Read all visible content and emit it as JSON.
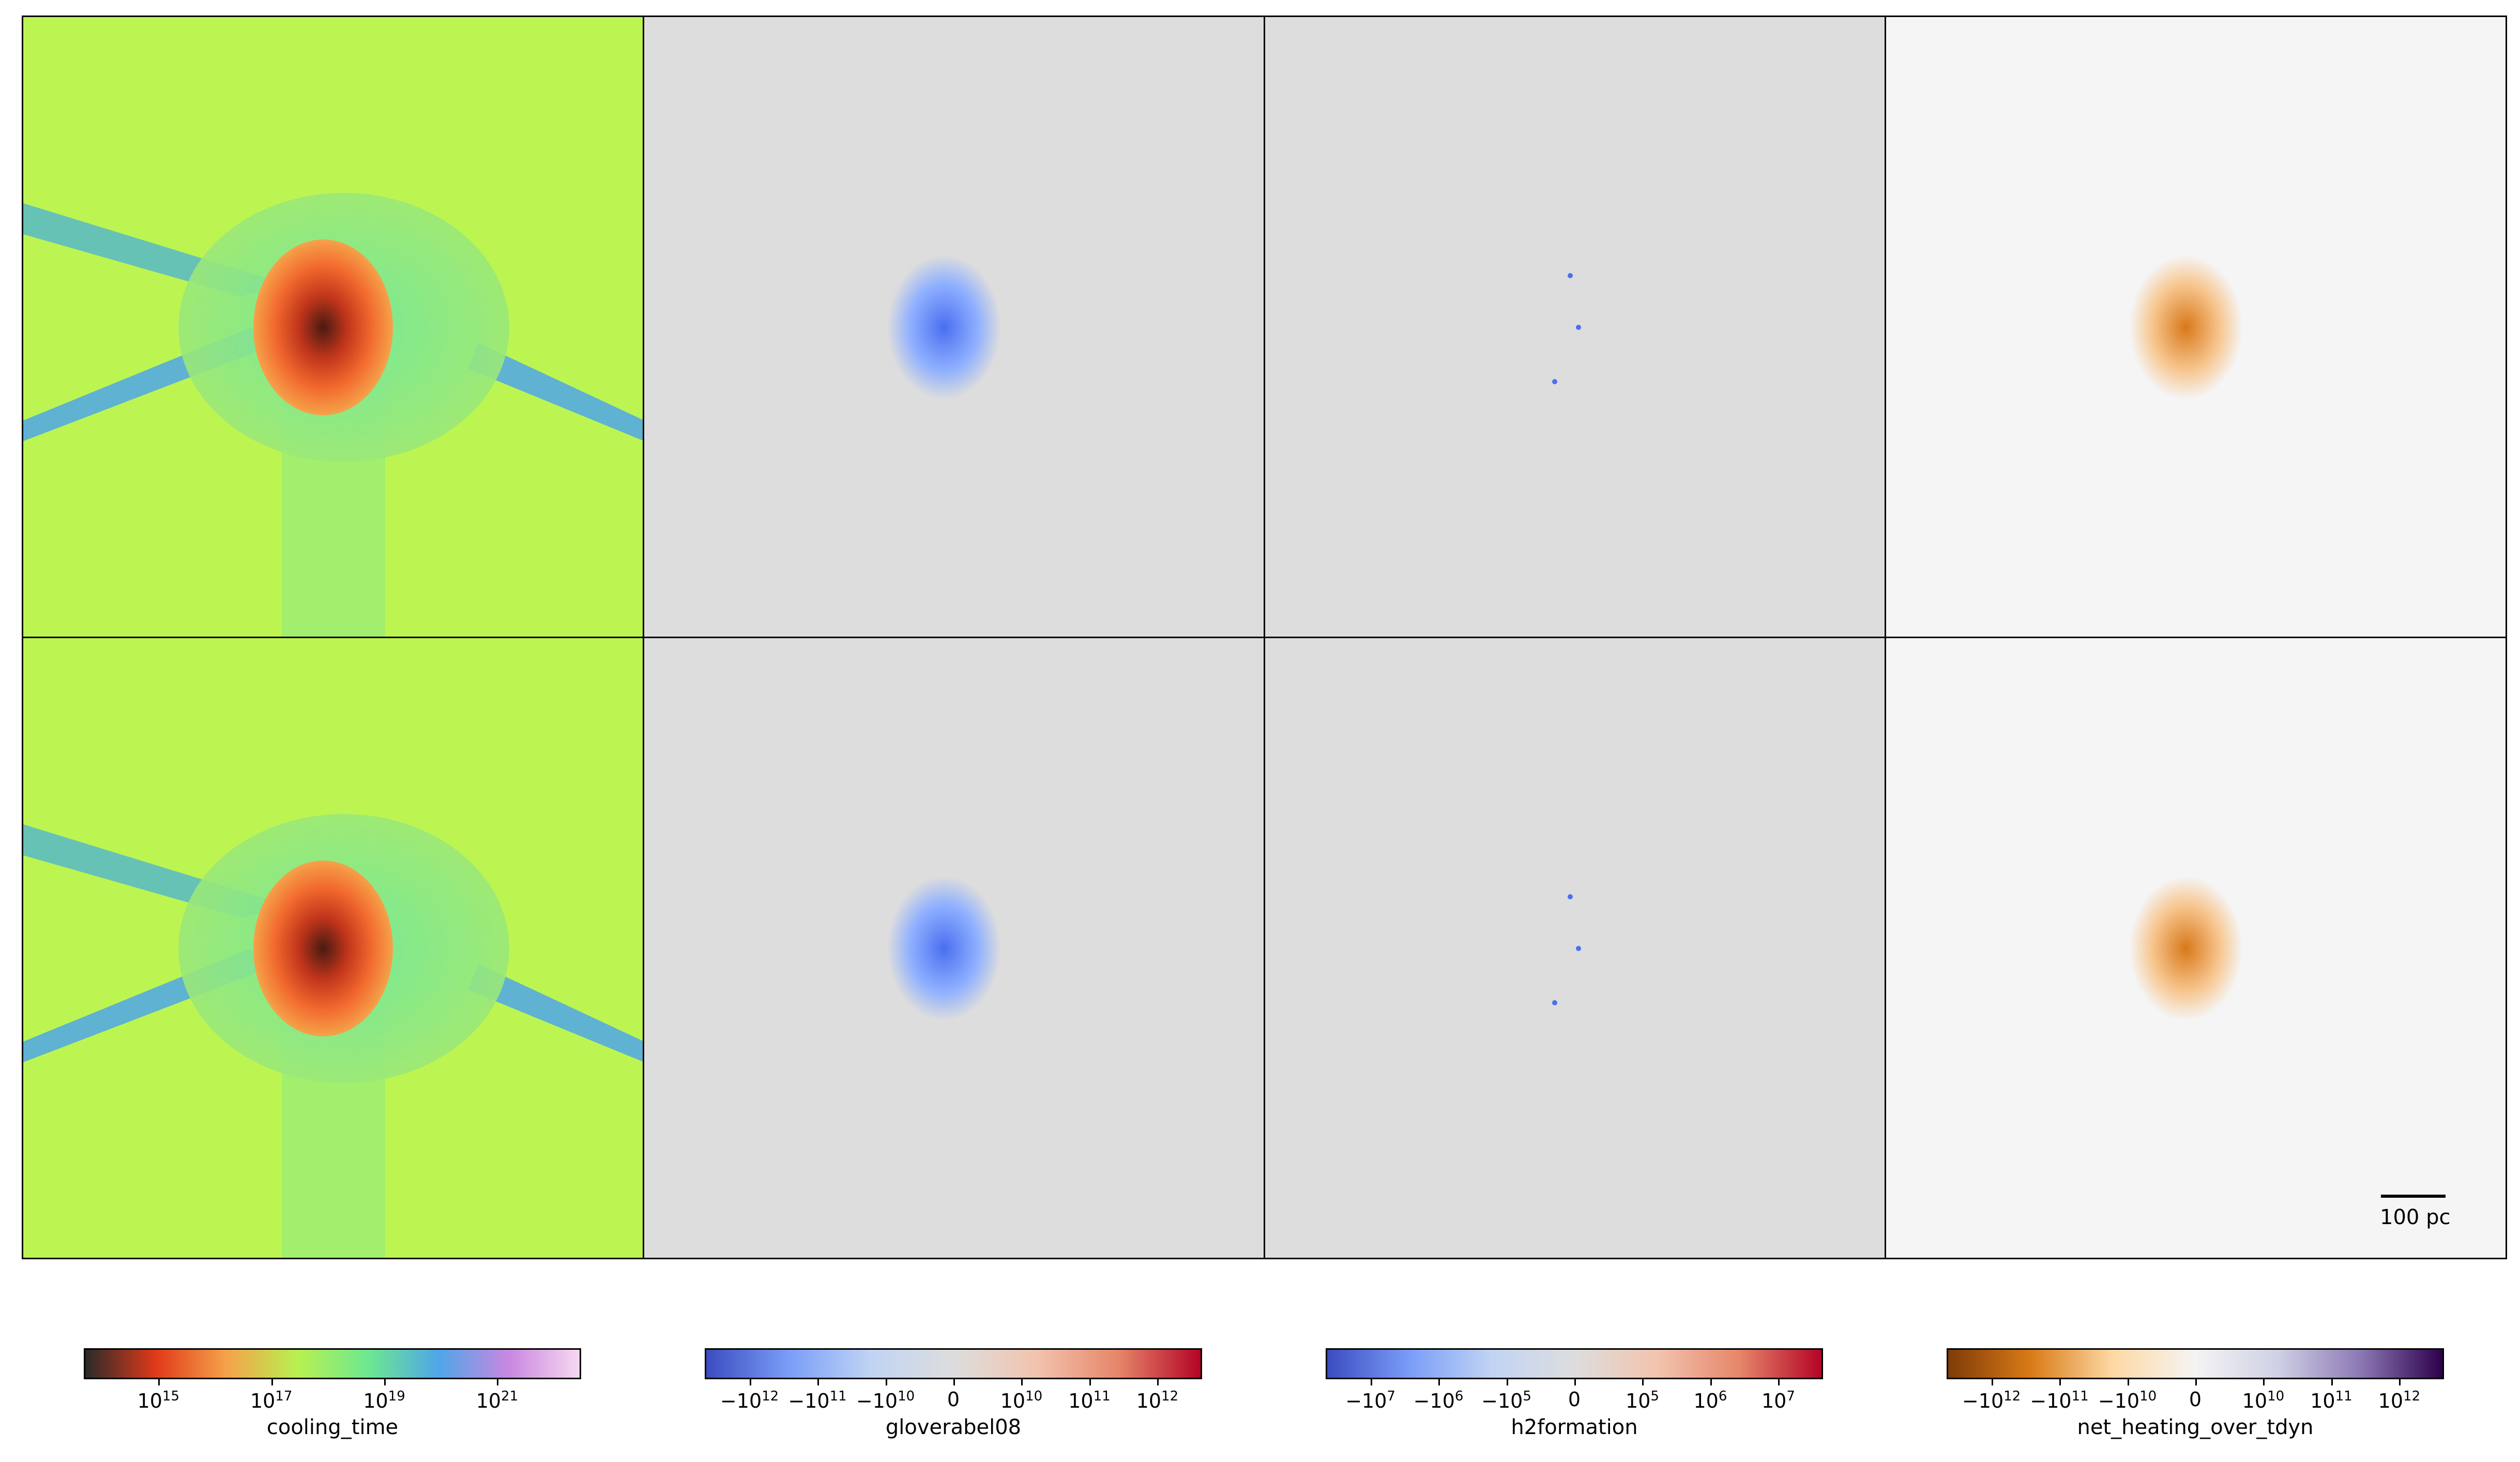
{
  "chart_data": {
    "type": "heatmap",
    "rows": 2,
    "columns": 4,
    "fields": [
      "cooling_time",
      "gloverabel08",
      "h2formation",
      "net_heating_over_tdyn"
    ],
    "scale_bar": "100 pc",
    "colorbars": [
      {
        "field": "cooling_time",
        "scale": "log",
        "colormap": [
          "#2a2a2a",
          "#e03a1a",
          "#f5a24a",
          "#b8f050",
          "#6ee890",
          "#4fa6e8",
          "#c987e0",
          "#f6d8f0"
        ],
        "tick_labels": [
          {
            "base": "10",
            "exp": "15"
          },
          {
            "base": "10",
            "exp": "17"
          },
          {
            "base": "10",
            "exp": "19"
          },
          {
            "base": "10",
            "exp": "21"
          }
        ]
      },
      {
        "field": "gloverabel08",
        "scale": "symlog",
        "colormap": [
          "#3b4cc0",
          "#7a9df8",
          "#c1d4f4",
          "#dddddd",
          "#f2c4ae",
          "#e6866a",
          "#b40426"
        ],
        "tick_labels": [
          {
            "base": "−10",
            "exp": "12"
          },
          {
            "base": "−10",
            "exp": "11"
          },
          {
            "base": "−10",
            "exp": "10"
          },
          {
            "base": "0",
            "exp": ""
          },
          {
            "base": "10",
            "exp": "10"
          },
          {
            "base": "10",
            "exp": "11"
          },
          {
            "base": "10",
            "exp": "12"
          }
        ]
      },
      {
        "field": "h2formation",
        "scale": "symlog",
        "colormap": [
          "#3b4cc0",
          "#7a9df8",
          "#c1d4f4",
          "#dddddd",
          "#f2c4ae",
          "#e6866a",
          "#b40426"
        ],
        "tick_labels": [
          {
            "base": "−10",
            "exp": "7"
          },
          {
            "base": "−10",
            "exp": "6"
          },
          {
            "base": "−10",
            "exp": "5"
          },
          {
            "base": "0",
            "exp": ""
          },
          {
            "base": "10",
            "exp": "5"
          },
          {
            "base": "10",
            "exp": "6"
          },
          {
            "base": "10",
            "exp": "7"
          }
        ]
      },
      {
        "field": "net_heating_over_tdyn",
        "scale": "symlog",
        "colormap": [
          "#7f3b08",
          "#d97a17",
          "#fdd9a4",
          "#f4f4f4",
          "#cfd0e5",
          "#8c79b4",
          "#2d004b"
        ],
        "tick_labels": [
          {
            "base": "−10",
            "exp": "12"
          },
          {
            "base": "−10",
            "exp": "11"
          },
          {
            "base": "−10",
            "exp": "10"
          },
          {
            "base": "0",
            "exp": ""
          },
          {
            "base": "10",
            "exp": "10"
          },
          {
            "base": "10",
            "exp": "11"
          },
          {
            "base": "10",
            "exp": "12"
          }
        ]
      }
    ]
  }
}
